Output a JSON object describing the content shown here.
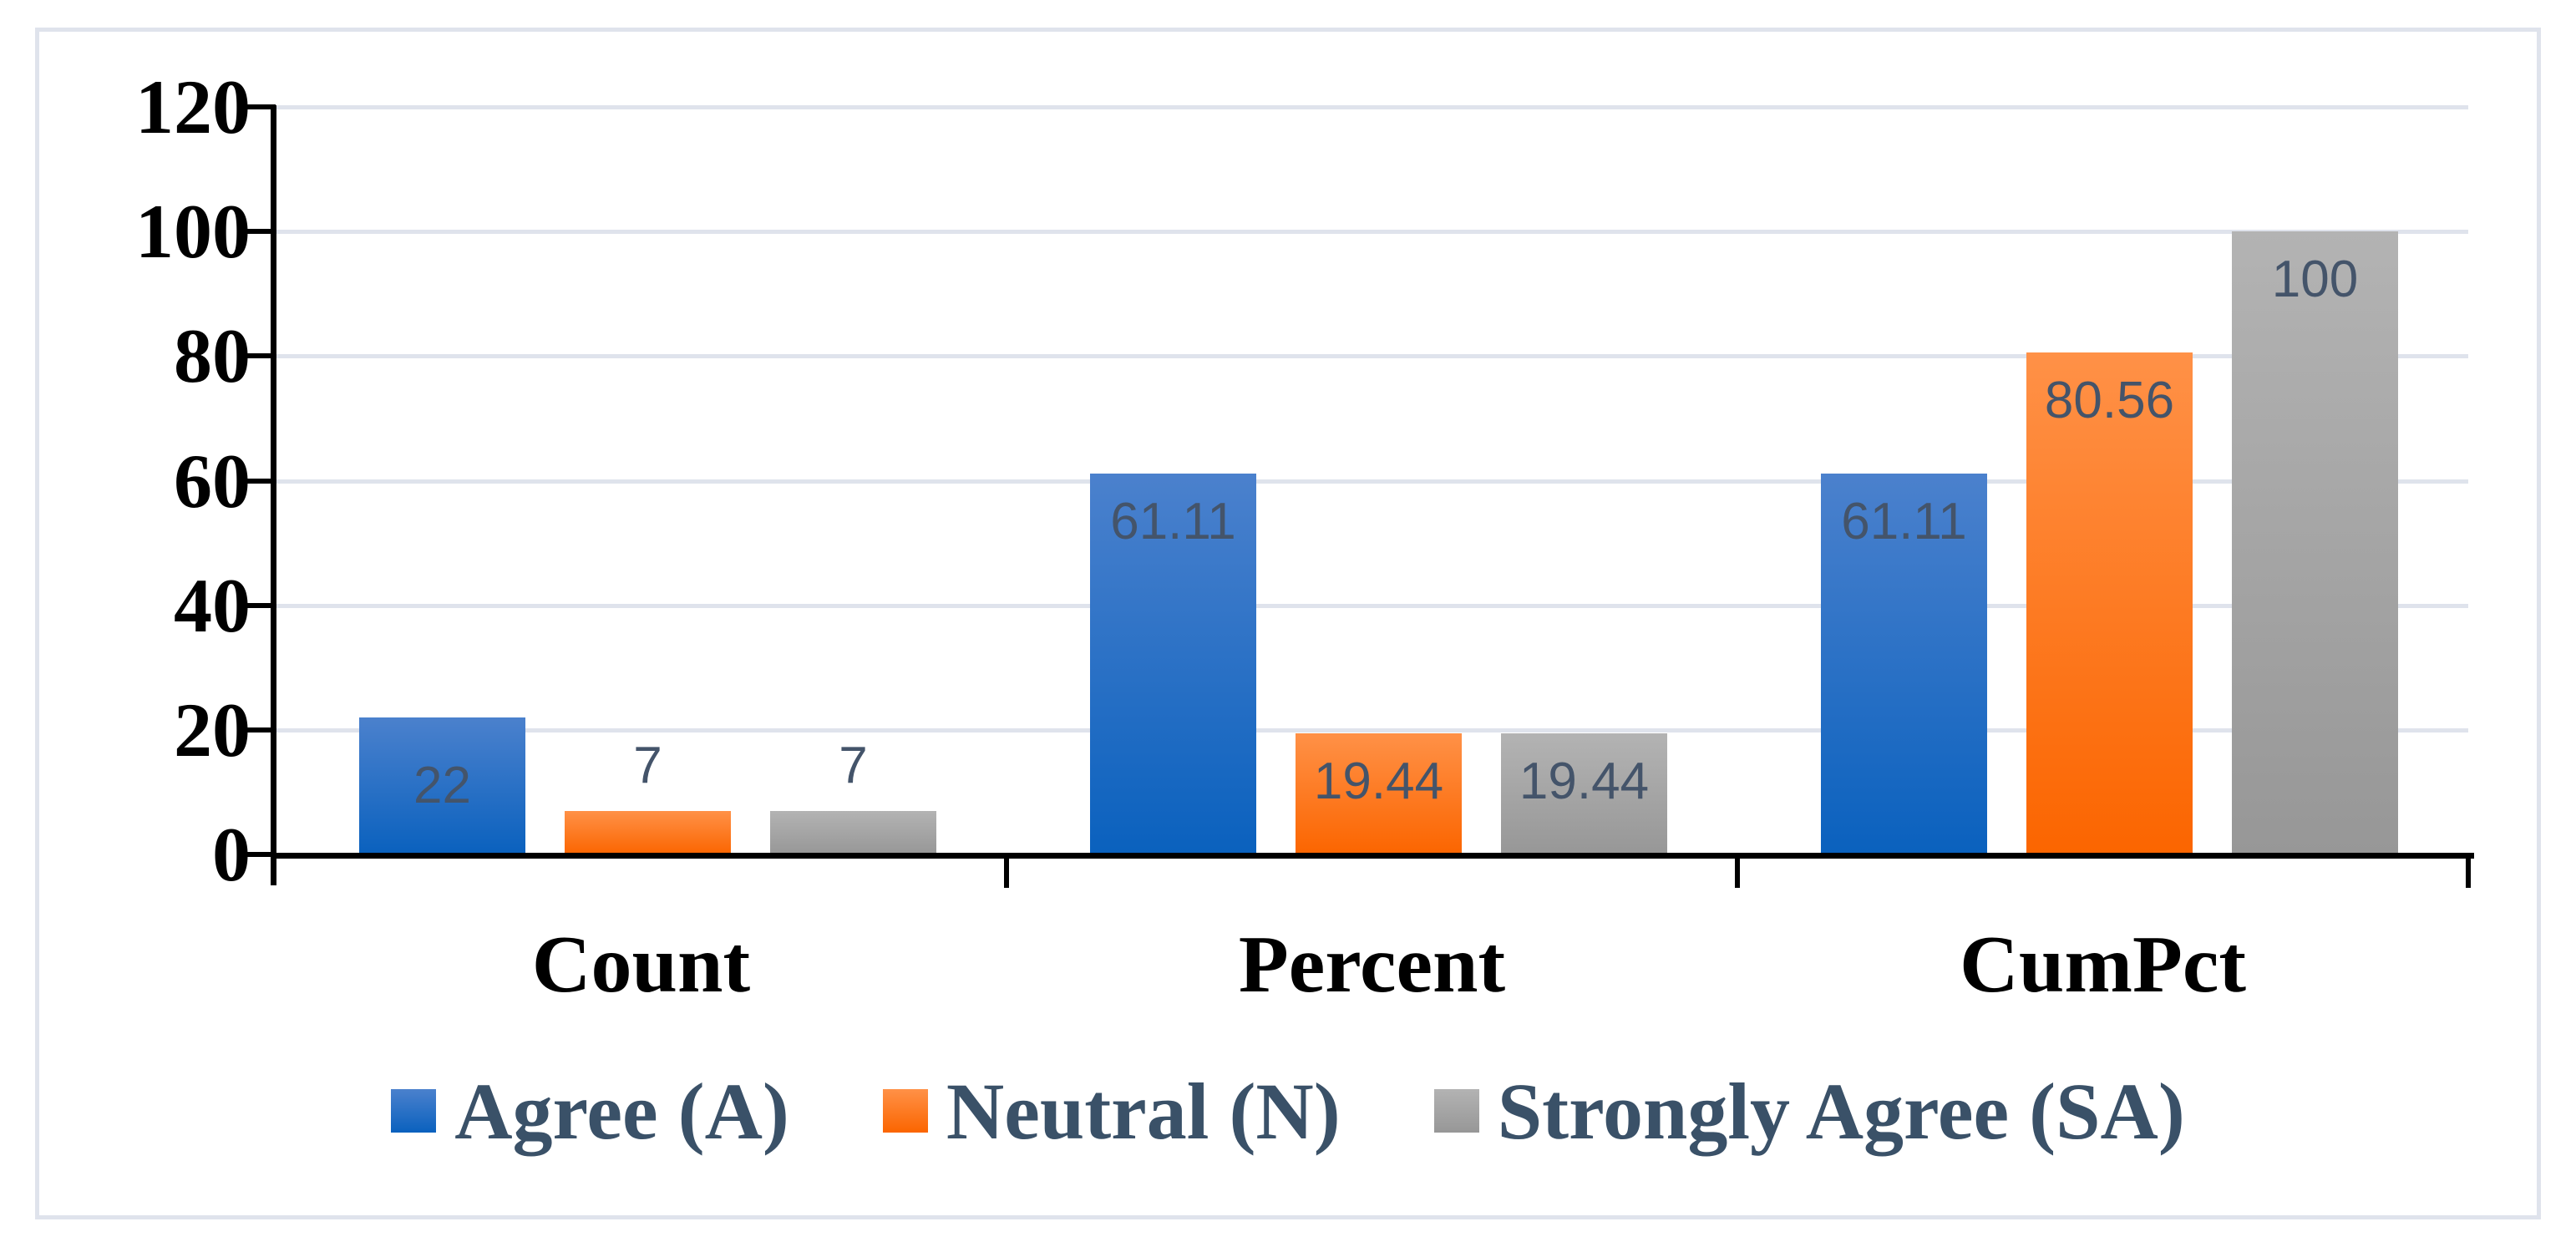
{
  "chart_data": {
    "type": "bar",
    "title": "",
    "categories": [
      "Count",
      "Percent",
      "CumPct"
    ],
    "series": [
      {
        "name": "Agree (A)",
        "values": [
          22,
          61.11,
          61.11
        ],
        "labels": [
          "22",
          "61.11",
          "61.11"
        ],
        "label_placement": [
          "center",
          "inside",
          "inside"
        ],
        "color_top": "#4b81cd",
        "color_bottom": "#0a61be"
      },
      {
        "name": "Neutral (N)",
        "values": [
          7,
          19.44,
          80.56
        ],
        "labels": [
          "7",
          "19.44",
          "80.56"
        ],
        "label_placement": [
          "outside",
          "inside",
          "inside"
        ],
        "color_top": "#ff9147",
        "color_bottom": "#fb6500"
      },
      {
        "name": "Strongly Agree (SA)",
        "values": [
          7,
          19.44,
          100
        ],
        "labels": [
          "7",
          "19.44",
          "100"
        ],
        "label_placement": [
          "outside",
          "inside",
          "inside"
        ],
        "color_top": "#b3b3b3",
        "color_bottom": "#979797"
      }
    ],
    "y_axis": {
      "min": 0,
      "max": 120,
      "tick_step": 20,
      "tick_labels": [
        "0",
        "20",
        "40",
        "60",
        "80",
        "100",
        "120"
      ]
    },
    "x_axis": {
      "label": ""
    },
    "legend": {
      "position": "bottom",
      "entries": [
        "Agree (A)",
        "Neutral (N)",
        "Strongly Agree (SA)"
      ]
    },
    "grid": true,
    "colors": {
      "data_label_text": "#44546A",
      "legend_text": "#3A5168",
      "axis": "#000000",
      "gridline": "#DFE3EC",
      "frame_border": "#DFE3EC",
      "tick_label_text": "#000000",
      "background": "#FFFFFF"
    }
  }
}
